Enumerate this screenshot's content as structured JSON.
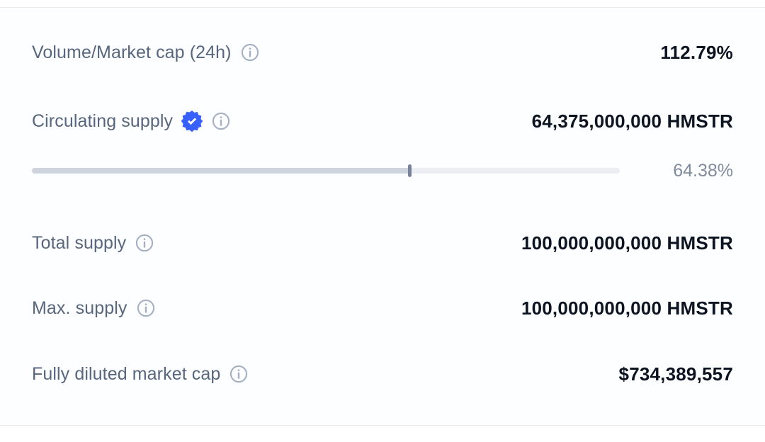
{
  "stats": {
    "volume_market_cap": {
      "label": "Volume/Market cap (24h)",
      "value": "112.79%"
    },
    "circulating_supply": {
      "label": "Circulating supply",
      "value": "64,375,000,000 HMSTR"
    },
    "supply_progress": {
      "percent": 64.38,
      "percent_label": "64.38%"
    },
    "total_supply": {
      "label": "Total supply",
      "value": "100,000,000,000 HMSTR"
    },
    "max_supply": {
      "label": "Max. supply",
      "value": "100,000,000,000 HMSTR"
    },
    "fully_diluted_market_cap": {
      "label": "Fully diluted market cap",
      "value": "$734,389,557"
    }
  },
  "icons": {
    "info": "info-icon",
    "verified": "verified-badge-icon"
  },
  "colors": {
    "label": "#58667e",
    "value": "#0d1421",
    "badge_blue": "#3861fb",
    "bar_track": "#eaedf2",
    "bar_fill": "#ced4de",
    "bar_handle": "#78829a",
    "divider": "#e8ecf1"
  }
}
